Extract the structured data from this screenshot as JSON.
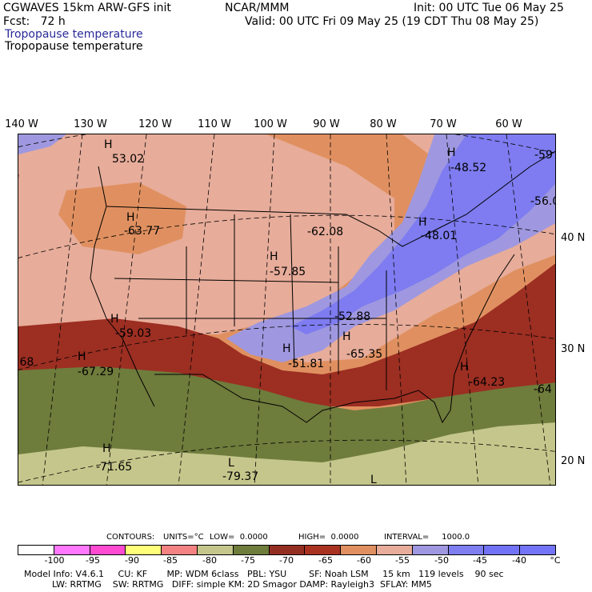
{
  "header": {
    "model": "CGWAVES 15km ARW-GFS init",
    "org": "NCAR/MMM",
    "init": "Init: 00 UTC Tue 06 May 25",
    "fcst": "Fcst:   72 h",
    "valid": "Valid: 00 UTC Fri 09 May 25 (19 CDT Thu 08 May 25)",
    "field_line1": "Tropopause temperature",
    "field_line2": "Tropopause temperature"
  },
  "longitudes": [
    "140 W",
    "130 W",
    "120 W",
    "110 W",
    "100 W",
    "90 W",
    "80 W",
    "70 W",
    "60 W"
  ],
  "latitudes": [
    "40 N",
    "30 N",
    "20 N"
  ],
  "map_labels": [
    {
      "h": "H",
      "val": "53.02"
    },
    {
      "h": "H",
      "val": "-48.52"
    },
    {
      "h": "",
      "val": "-59"
    },
    {
      "h": "",
      "val": "-56.0"
    },
    {
      "h": "H",
      "val": "-63.77"
    },
    {
      "h": "",
      "val": "-62.08"
    },
    {
      "h": "H",
      "val": "-48.01"
    },
    {
      "h": "H",
      "val": "-57.85"
    },
    {
      "h": "H",
      "val": "-59.03"
    },
    {
      "h": "",
      "val": "-52.88"
    },
    {
      "h": "H",
      "val": "-67.29"
    },
    {
      "h": "H",
      "val": "-51.81"
    },
    {
      "h": "H",
      "val": "-65.35"
    },
    {
      "h": "",
      "val": ".68"
    },
    {
      "h": "H",
      "val": "-64.23"
    },
    {
      "h": "",
      "val": "-64"
    },
    {
      "h": "H",
      "val": "-71.65"
    },
    {
      "h": "L",
      "val": "-79.37"
    },
    {
      "h": "L",
      "val": ""
    }
  ],
  "contours": {
    "label": "CONTOURS:",
    "units": "UNITS=°C",
    "low": "LOW=  0.0000",
    "high": "HIGH=  0.0000",
    "interval": "INTERVAL=     1000.0"
  },
  "colorbar": {
    "colors": [
      "#ffffff",
      "#ff78ff",
      "#ff4ad2",
      "#ffff7a",
      "#f58282",
      "#c5c68b",
      "#6e7c3c",
      "#952e22",
      "#aa3220",
      "#e09060",
      "#e7ac9a",
      "#9f98e0",
      "#7f7ef0",
      "#7272f6",
      "#7474f8"
    ],
    "ticks": [
      "-100",
      "-95",
      "-90",
      "-85",
      "-80",
      "-75",
      "-70",
      "-65",
      "-60",
      "-55",
      "-50",
      "-45",
      "-40",
      "°C"
    ]
  },
  "footer": {
    "line1": "Model Info: V4.6.1     CU: KF       MP: WDM 6class   PBL: YSU        SF: Noah LSM     15 km   119 levels    90 sec",
    "line2": "          LW: RRTMG    SW: RRTMG   DIFF: simple KM: 2D Smagor DAMP: Rayleigh3  SFLAY: MM5"
  }
}
